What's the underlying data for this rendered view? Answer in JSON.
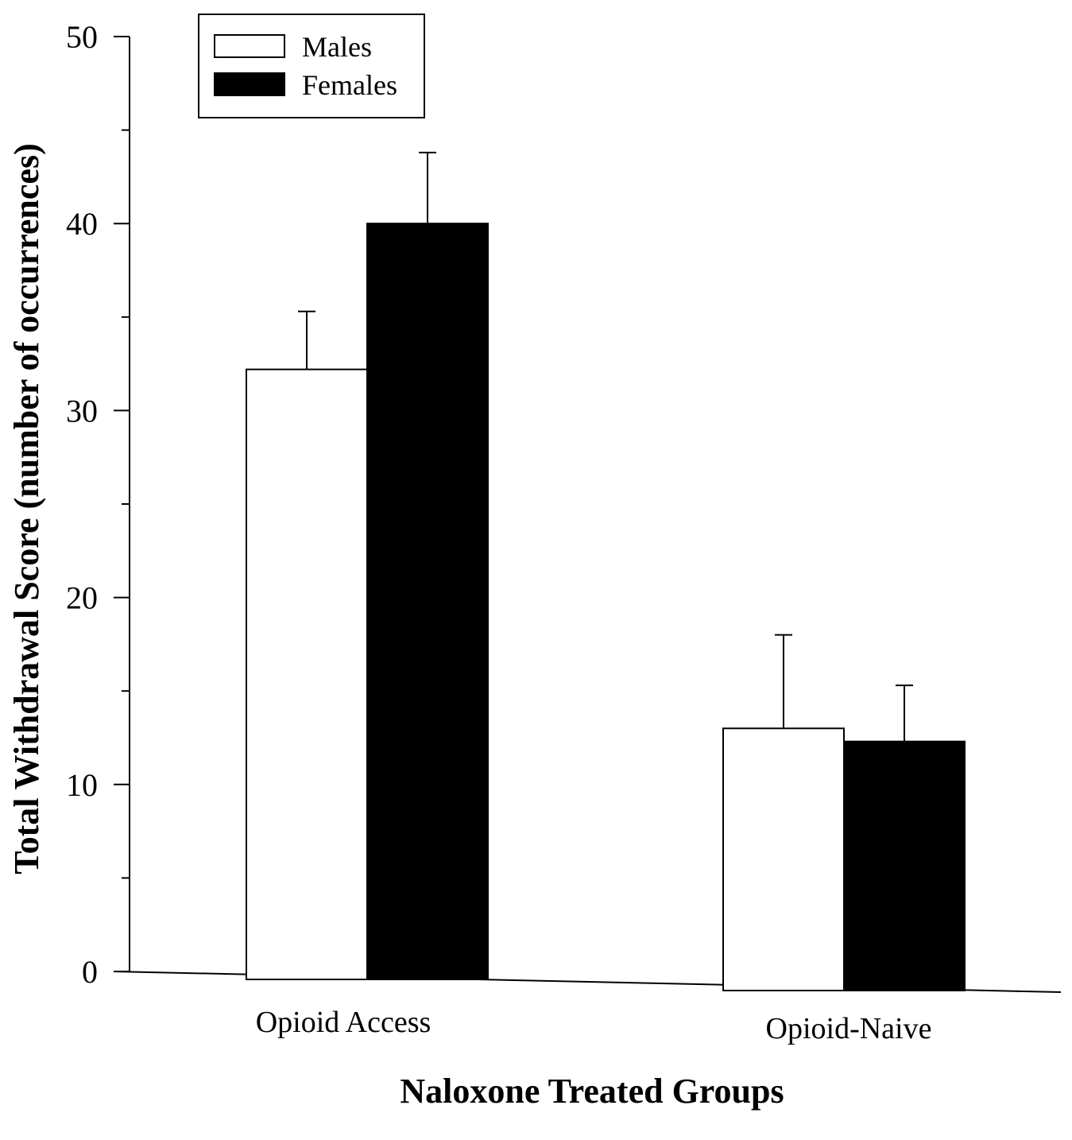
{
  "chart_data": {
    "type": "bar",
    "title": "",
    "xlabel": "Naloxone Treated Groups",
    "ylabel": "Total Withdrawal Score (number of occurrences)",
    "categories": [
      "Opioid Access",
      "Opioid-Naive"
    ],
    "series": [
      {
        "name": "Males",
        "values": [
          32.2,
          13.0
        ],
        "errors": [
          3.1,
          5.0
        ],
        "color": "#ffffff"
      },
      {
        "name": "Females",
        "values": [
          40.0,
          12.3
        ],
        "errors": [
          3.8,
          3.0
        ],
        "color": "#000000"
      }
    ],
    "ylim": [
      0,
      50
    ],
    "yticks_major": [
      0,
      10,
      20,
      30,
      40,
      50
    ],
    "ytick_labels": [
      "0",
      "10",
      "20",
      "30",
      "40",
      "50"
    ],
    "yticks_minor": [
      5,
      15,
      25,
      35,
      45
    ],
    "legend": {
      "position": "top-left",
      "entries": [
        "Males",
        "Females"
      ]
    },
    "grid": false,
    "error_bars": "upper only"
  }
}
